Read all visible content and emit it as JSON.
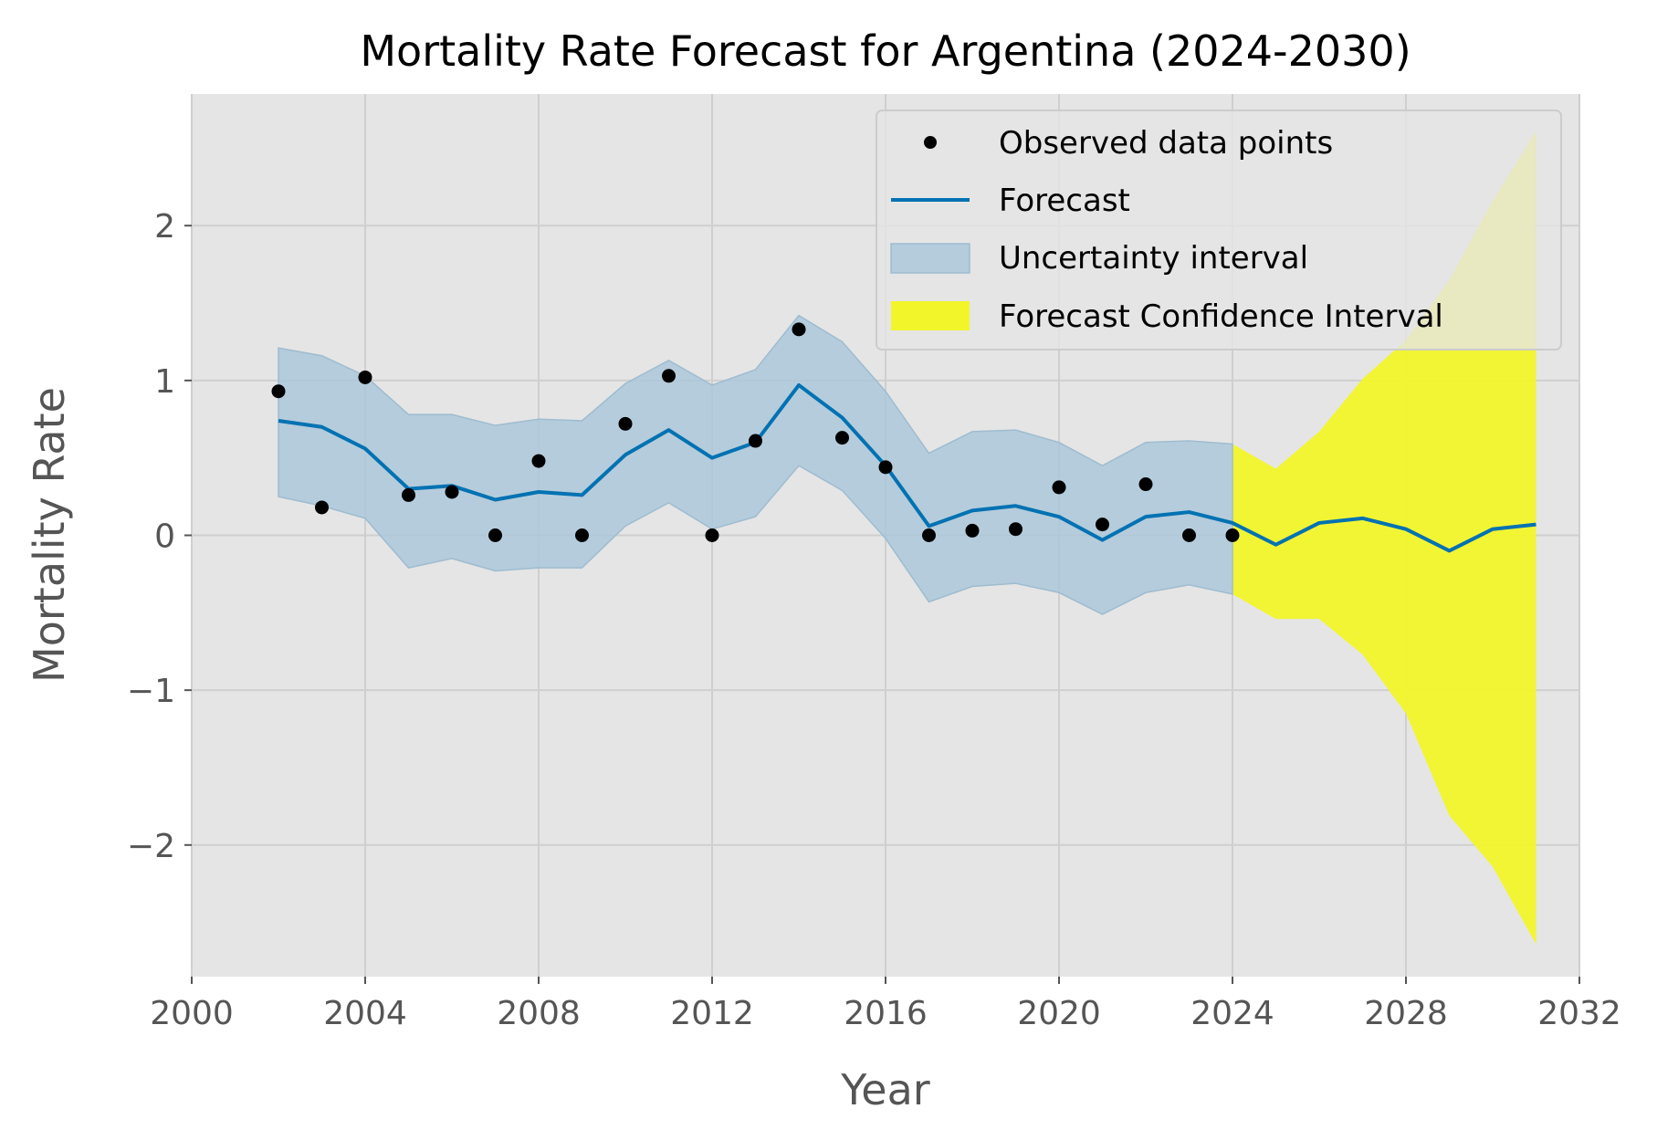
{
  "chart_data": {
    "type": "line",
    "title": "Mortality Rate Forecast for Argentina (2024-2030)",
    "xlabel": "Year",
    "ylabel": "Mortality Rate",
    "xlim": [
      2000,
      2032
    ],
    "ylim": [
      -2.85,
      2.85
    ],
    "xticks": [
      2000,
      2004,
      2008,
      2012,
      2016,
      2020,
      2024,
      2028,
      2032
    ],
    "xtick_labels": [
      "2000",
      "2004",
      "2008",
      "2012",
      "2016",
      "2020",
      "2024",
      "2028",
      "2032"
    ],
    "yticks": [
      2,
      1,
      0,
      -1,
      -2
    ],
    "ytick_labels": [
      "2",
      "1",
      "0",
      "−1",
      "−2"
    ],
    "grid": true,
    "legend_position": "top-right",
    "colors": {
      "plot_background": "#e5e5e5",
      "grid": "#cfcfcf",
      "observed": "#000000",
      "forecast": "#0072b2",
      "uncertainty": "#a9c6d9",
      "forecast_ci": "#f2f52a"
    },
    "observed": {
      "name": "Observed data points",
      "x": [
        2002,
        2003,
        2004,
        2005,
        2006,
        2007,
        2008,
        2009,
        2010,
        2011,
        2012,
        2013,
        2014,
        2015,
        2016,
        2017,
        2018,
        2019,
        2020,
        2021,
        2022,
        2023,
        2024
      ],
      "y": [
        0.93,
        0.18,
        1.02,
        0.26,
        0.28,
        0.0,
        0.48,
        0.0,
        0.72,
        1.03,
        0.0,
        0.61,
        1.33,
        0.63,
        0.44,
        0.0,
        0.03,
        0.04,
        0.31,
        0.07,
        0.33,
        0.0,
        0.0
      ]
    },
    "forecast": {
      "name": "Forecast",
      "x": [
        2002,
        2003,
        2004,
        2005,
        2006,
        2007,
        2008,
        2009,
        2010,
        2011,
        2012,
        2013,
        2014,
        2015,
        2016,
        2017,
        2018,
        2019,
        2020,
        2021,
        2022,
        2023,
        2024,
        2025,
        2026,
        2027,
        2028,
        2029,
        2030,
        2031
      ],
      "y": [
        0.74,
        0.7,
        0.56,
        0.3,
        0.32,
        0.23,
        0.28,
        0.26,
        0.52,
        0.68,
        0.5,
        0.6,
        0.97,
        0.76,
        0.45,
        0.06,
        0.16,
        0.19,
        0.12,
        -0.03,
        0.12,
        0.15,
        0.08,
        -0.06,
        0.08,
        0.11,
        0.04,
        -0.1,
        0.04,
        0.07
      ]
    },
    "uncertainty": {
      "name": "Uncertainty interval",
      "x": [
        2002,
        2003,
        2004,
        2005,
        2006,
        2007,
        2008,
        2009,
        2010,
        2011,
        2012,
        2013,
        2014,
        2015,
        2016,
        2017,
        2018,
        2019,
        2020,
        2021,
        2022,
        2023,
        2024
      ],
      "lower": [
        0.25,
        0.19,
        0.11,
        -0.21,
        -0.15,
        -0.23,
        -0.21,
        -0.21,
        0.06,
        0.21,
        0.04,
        0.12,
        0.45,
        0.29,
        -0.02,
        -0.43,
        -0.33,
        -0.31,
        -0.37,
        -0.51,
        -0.37,
        -0.32,
        -0.38
      ],
      "upper": [
        1.21,
        1.16,
        1.03,
        0.78,
        0.78,
        0.71,
        0.75,
        0.74,
        0.98,
        1.13,
        0.97,
        1.07,
        1.42,
        1.25,
        0.93,
        0.53,
        0.67,
        0.68,
        0.6,
        0.45,
        0.6,
        0.61,
        0.59
      ]
    },
    "forecast_ci": {
      "name": "Forecast Confidence Interval",
      "x": [
        2024,
        2025,
        2026,
        2027,
        2028,
        2029,
        2030,
        2031
      ],
      "lower": [
        -0.38,
        -0.54,
        -0.54,
        -0.77,
        -1.15,
        -1.81,
        -2.14,
        -2.64
      ],
      "upper": [
        0.59,
        0.43,
        0.67,
        1.01,
        1.26,
        1.65,
        2.16,
        2.61
      ]
    }
  }
}
